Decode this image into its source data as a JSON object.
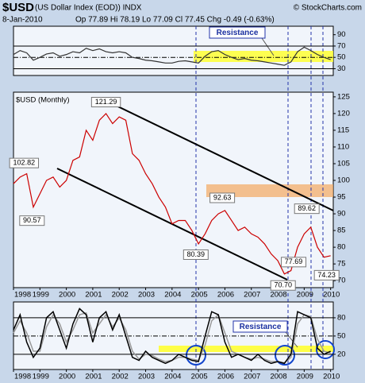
{
  "header": {
    "symbol": "$USD",
    "name": "(US Dollar Index (EOD)) INDX",
    "date": "8-Jan-2010",
    "quote": "Op 77.89 Hi 78.19 Lo 77.09 Cl 77.45 Chg -0.49 (-0.63%)",
    "credit": "© StockCharts.com"
  },
  "chart_data": [
    {
      "type": "line",
      "annotation": "Resistance",
      "color": "#333333",
      "x": [
        1998,
        1998.25,
        1998.5,
        1998.75,
        1999,
        1999.25,
        1999.5,
        1999.75,
        2000,
        2000.25,
        2000.5,
        2000.75,
        2001,
        2001.25,
        2001.5,
        2001.75,
        2002,
        2002.25,
        2002.5,
        2002.75,
        2003,
        2003.25,
        2003.5,
        2003.75,
        2004,
        2004.25,
        2004.5,
        2004.75,
        2005,
        2005.25,
        2005.5,
        2005.75,
        2006,
        2006.25,
        2006.5,
        2006.75,
        2007,
        2007.25,
        2007.5,
        2007.75,
        2008,
        2008.25,
        2008.5,
        2008.75,
        2009,
        2009.25,
        2009.5,
        2009.75,
        2010
      ],
      "values": [
        55,
        62,
        58,
        45,
        50,
        56,
        58,
        52,
        55,
        60,
        58,
        66,
        62,
        65,
        60,
        58,
        60,
        58,
        50,
        48,
        45,
        44,
        42,
        40,
        40,
        43,
        44,
        42,
        40,
        52,
        60,
        62,
        55,
        50,
        46,
        48,
        45,
        44,
        42,
        40,
        38,
        36,
        42,
        60,
        68,
        62,
        55,
        50,
        46
      ],
      "xlim": [
        1998,
        2010.1
      ],
      "ylim": [
        18,
        105
      ],
      "yticks": [
        30,
        50,
        70,
        90
      ],
      "levels": [
        30,
        50,
        70
      ]
    },
    {
      "type": "line",
      "title": "$USD (Monthly)",
      "color": "#cc0000",
      "x": [
        1998,
        1998.25,
        1998.5,
        1998.75,
        1999,
        1999.25,
        1999.5,
        1999.75,
        2000,
        2000.25,
        2000.5,
        2000.75,
        2001,
        2001.25,
        2001.5,
        2001.75,
        2002,
        2002.25,
        2002.5,
        2002.75,
        2003,
        2003.25,
        2003.5,
        2003.75,
        2004,
        2004.25,
        2004.5,
        2004.75,
        2005,
        2005.25,
        2005.5,
        2005.75,
        2006,
        2006.25,
        2006.5,
        2006.75,
        2007,
        2007.25,
        2007.5,
        2007.75,
        2008,
        2008.25,
        2008.5,
        2008.75,
        2009,
        2009.25,
        2009.5,
        2009.75,
        2010
      ],
      "values": [
        99,
        101,
        102,
        92,
        96,
        100,
        101,
        98,
        100,
        106,
        107,
        115,
        112,
        118,
        120,
        117,
        119,
        118,
        108,
        106,
        102,
        99,
        95,
        92,
        87,
        88,
        88,
        85,
        81,
        84,
        88,
        90,
        91,
        88,
        85,
        86,
        84,
        83,
        81,
        78,
        76,
        72,
        73,
        80,
        84,
        86,
        80,
        77,
        77.45
      ],
      "point_labels": {
        "x": [
          1998.4,
          1998.7,
          2001.5,
          2004.9,
          2005.9,
          2008.2,
          2008.6,
          2009.1,
          2009.85
        ],
        "values": [
          102.82,
          90.57,
          121.29,
          80.39,
          92.63,
          70.7,
          77.69,
          89.62,
          74.23
        ],
        "value_labels": [
          "102.82",
          "90.57",
          "121.29",
          "80.39",
          "92.63",
          "70.70",
          "77.69",
          "89.62",
          "74.23"
        ]
      },
      "xlim": [
        1998,
        2010.1
      ],
      "ylim": [
        67.9,
        126.4
      ],
      "yticks": [
        70,
        75,
        80,
        85,
        90,
        95,
        100,
        105,
        110,
        115,
        120,
        125
      ],
      "xticks": [
        1998,
        1999,
        2000,
        2001,
        2002,
        2003,
        2004,
        2005,
        2006,
        2007,
        2008,
        2009,
        2010
      ]
    },
    {
      "type": "line",
      "annotation": "Resistance",
      "x": [
        1998,
        1998.25,
        1998.5,
        1998.75,
        1999,
        1999.25,
        1999.5,
        1999.75,
        2000,
        2000.25,
        2000.5,
        2000.75,
        2001,
        2001.25,
        2001.5,
        2001.75,
        2002,
        2002.25,
        2002.5,
        2002.75,
        2003,
        2003.25,
        2003.5,
        2003.75,
        2004,
        2004.25,
        2004.5,
        2004.75,
        2005,
        2005.25,
        2005.5,
        2005.75,
        2006,
        2006.25,
        2006.5,
        2006.75,
        2007,
        2007.25,
        2007.5,
        2007.75,
        2008,
        2008.25,
        2008.5,
        2008.75,
        2009,
        2009.25,
        2009.5,
        2009.75,
        2010
      ],
      "series": [
        {
          "color": "#000000",
          "values": [
            60,
            85,
            40,
            15,
            30,
            80,
            90,
            60,
            30,
            70,
            95,
            85,
            40,
            80,
            90,
            60,
            85,
            50,
            15,
            10,
            25,
            15,
            10,
            5,
            10,
            20,
            15,
            10,
            8,
            50,
            90,
            85,
            40,
            15,
            20,
            15,
            10,
            20,
            10,
            5,
            8,
            5,
            20,
            90,
            85,
            80,
            30,
            20,
            25
          ]
        },
        {
          "color": "#999999",
          "values": [
            55,
            75,
            55,
            25,
            25,
            65,
            85,
            70,
            40,
            60,
            85,
            88,
            55,
            70,
            85,
            65,
            80,
            60,
            25,
            12,
            20,
            18,
            12,
            8,
            10,
            15,
            15,
            12,
            10,
            35,
            75,
            85,
            55,
            25,
            20,
            15,
            12,
            15,
            12,
            8,
            8,
            6,
            15,
            70,
            85,
            82,
            45,
            25,
            22
          ]
        }
      ],
      "xlim": [
        1998,
        2010.1
      ],
      "ylim": [
        -5,
        106
      ],
      "yticks": [
        20,
        50,
        80
      ],
      "levels": [
        20,
        50,
        80
      ],
      "xticks": [
        1998,
        1999,
        2000,
        2001,
        2002,
        2003,
        2004,
        2005,
        2006,
        2007,
        2008,
        2009,
        2010
      ]
    }
  ]
}
